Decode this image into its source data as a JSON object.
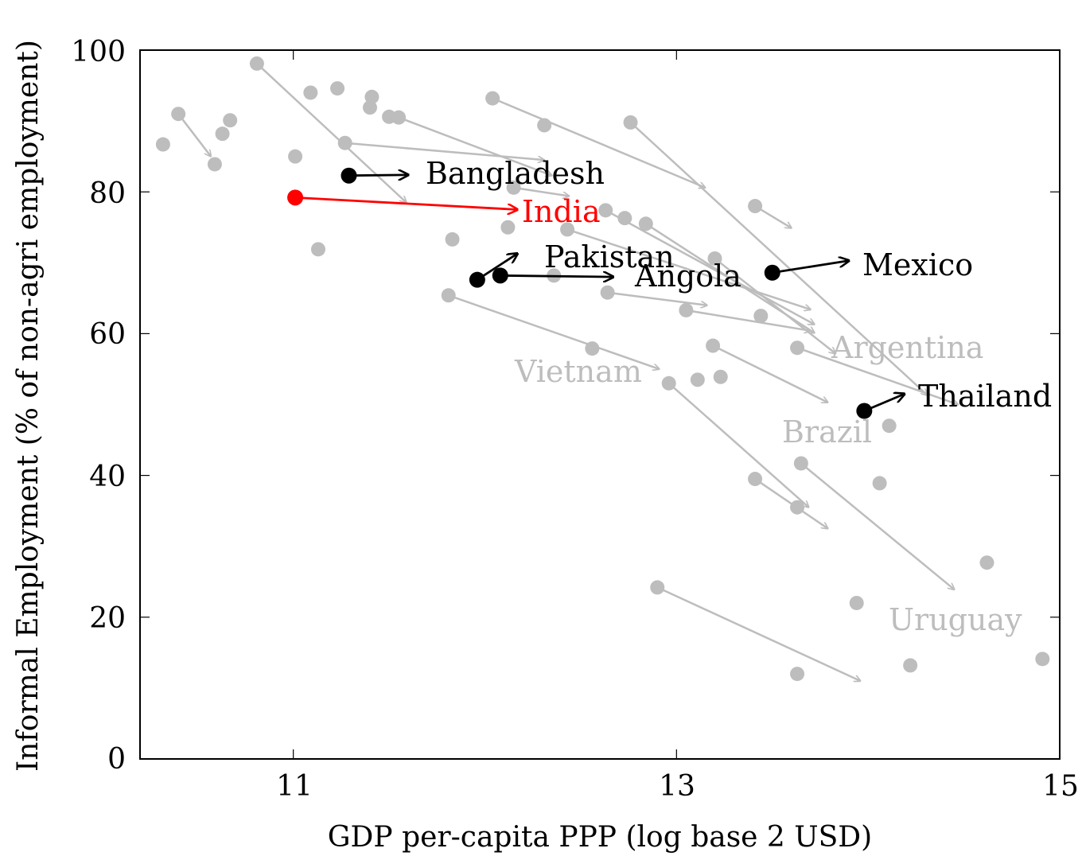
{
  "chart_data": {
    "type": "scatter",
    "title": "",
    "xlabel": "GDP per-capita PPP (log base 2 USD)",
    "ylabel": "Informal Employment (% of non-agri employment)",
    "xlim": [
      10.2,
      15
    ],
    "ylim": [
      0,
      100
    ],
    "xticks": [
      11,
      13,
      15
    ],
    "yticks": [
      0,
      20,
      40,
      60,
      80,
      100
    ],
    "grid": false,
    "colors": {
      "background_points": "#bdbdbd",
      "highlight": "#000000",
      "india": "#ff0000"
    },
    "background_points": [
      {
        "x": 10.32,
        "y": 86.7
      },
      {
        "x": 10.4,
        "y": 91.0
      },
      {
        "x": 10.59,
        "y": 83.9
      },
      {
        "x": 10.63,
        "y": 88.2
      },
      {
        "x": 10.67,
        "y": 90.1
      },
      {
        "x": 10.81,
        "y": 98.1
      },
      {
        "x": 11.01,
        "y": 85.0
      },
      {
        "x": 11.09,
        "y": 94.0
      },
      {
        "x": 11.13,
        "y": 71.9
      },
      {
        "x": 11.23,
        "y": 94.6
      },
      {
        "x": 11.27,
        "y": 86.9
      },
      {
        "x": 11.4,
        "y": 91.9
      },
      {
        "x": 11.41,
        "y": 93.4
      },
      {
        "x": 11.5,
        "y": 90.6
      },
      {
        "x": 11.55,
        "y": 90.5
      },
      {
        "x": 11.83,
        "y": 73.3
      },
      {
        "x": 11.81,
        "y": 65.4
      },
      {
        "x": 12.04,
        "y": 93.2
      },
      {
        "x": 12.12,
        "y": 75.0
      },
      {
        "x": 12.15,
        "y": 80.6
      },
      {
        "x": 12.31,
        "y": 89.4
      },
      {
        "x": 12.36,
        "y": 68.2
      },
      {
        "x": 12.43,
        "y": 74.7
      },
      {
        "x": 12.56,
        "y": 57.9
      },
      {
        "x": 12.63,
        "y": 77.4
      },
      {
        "x": 12.64,
        "y": 65.8
      },
      {
        "x": 12.73,
        "y": 76.3
      },
      {
        "x": 12.76,
        "y": 89.8
      },
      {
        "x": 12.84,
        "y": 75.5
      },
      {
        "x": 12.9,
        "y": 24.2
      },
      {
        "x": 12.96,
        "y": 53.0
      },
      {
        "x": 13.05,
        "y": 63.3
      },
      {
        "x": 13.11,
        "y": 53.5
      },
      {
        "x": 13.19,
        "y": 58.3
      },
      {
        "x": 13.2,
        "y": 70.6
      },
      {
        "x": 13.23,
        "y": 53.9
      },
      {
        "x": 13.41,
        "y": 78.0
      },
      {
        "x": 13.41,
        "y": 39.5
      },
      {
        "x": 13.44,
        "y": 62.5
      },
      {
        "x": 13.63,
        "y": 58.0
      },
      {
        "x": 13.63,
        "y": 35.5
      },
      {
        "x": 13.63,
        "y": 12.0
      },
      {
        "x": 13.65,
        "y": 41.7
      },
      {
        "x": 13.94,
        "y": 22.0
      },
      {
        "x": 14.06,
        "y": 38.9
      },
      {
        "x": 14.11,
        "y": 47.0
      },
      {
        "x": 14.22,
        "y": 13.2
      },
      {
        "x": 14.62,
        "y": 27.7
      },
      {
        "x": 14.91,
        "y": 14.1
      }
    ],
    "background_arrows": [
      {
        "from": [
          10.4,
          91.0
        ],
        "to": [
          10.57,
          85.0
        ]
      },
      {
        "from": [
          10.81,
          98.1
        ],
        "to": [
          11.59,
          78.5
        ]
      },
      {
        "from": [
          11.27,
          86.9
        ],
        "to": [
          12.31,
          84.5
        ]
      },
      {
        "from": [
          12.04,
          93.2
        ],
        "to": [
          13.15,
          80.6
        ]
      },
      {
        "from": [
          11.55,
          90.5
        ],
        "to": [
          12.35,
          82.3
        ]
      },
      {
        "from": [
          12.15,
          80.6
        ],
        "to": [
          12.44,
          79.4
        ]
      },
      {
        "from": [
          12.76,
          89.8
        ],
        "to": [
          14.31,
          51.3
        ]
      },
      {
        "from": [
          13.41,
          78.0
        ],
        "to": [
          13.6,
          74.9
        ]
      },
      {
        "from": [
          12.43,
          74.7
        ],
        "to": [
          13.7,
          63.4
        ]
      },
      {
        "from": [
          12.63,
          77.4
        ],
        "to": [
          13.72,
          61.3
        ]
      },
      {
        "from": [
          12.84,
          75.5
        ],
        "to": [
          13.72,
          60.1
        ]
      },
      {
        "from": [
          13.2,
          70.6
        ],
        "to": [
          13.83,
          57.2
        ]
      },
      {
        "from": [
          12.64,
          65.8
        ],
        "to": [
          13.16,
          64.0
        ]
      },
      {
        "from": [
          13.05,
          63.3
        ],
        "to": [
          13.7,
          60.4
        ]
      },
      {
        "from": [
          13.63,
          58.0
        ],
        "to": [
          14.47,
          50.0
        ]
      },
      {
        "from": [
          11.81,
          65.4
        ],
        "to": [
          12.91,
          55.0
        ]
      },
      {
        "from": [
          13.19,
          58.3
        ],
        "to": [
          13.79,
          50.3
        ]
      },
      {
        "from": [
          12.96,
          53.0
        ],
        "to": [
          13.69,
          35.5
        ]
      },
      {
        "from": [
          13.41,
          39.5
        ],
        "to": [
          13.79,
          32.5
        ]
      },
      {
        "from": [
          13.65,
          41.7
        ],
        "to": [
          14.45,
          23.9
        ]
      },
      {
        "from": [
          12.9,
          24.2
        ],
        "to": [
          13.96,
          11.0
        ]
      }
    ],
    "highlighted": [
      {
        "name": "Bangladesh",
        "from": [
          11.29,
          82.3
        ],
        "to": [
          11.6,
          82.4
        ]
      },
      {
        "name": "India",
        "from": [
          11.01,
          79.2
        ],
        "to": [
          12.17,
          77.5
        ]
      },
      {
        "name": "Pakistan",
        "from": [
          11.96,
          67.6
        ],
        "to": [
          12.17,
          71.3
        ]
      },
      {
        "name": "Angola",
        "from": [
          12.08,
          68.2
        ],
        "to": [
          12.67,
          68.0
        ]
      },
      {
        "name": "Mexico",
        "from": [
          13.5,
          68.6
        ],
        "to": [
          13.9,
          70.3
        ]
      },
      {
        "name": "Thailand",
        "from": [
          13.98,
          49.1
        ],
        "to": [
          14.19,
          51.5
        ]
      }
    ],
    "faded_labels": [
      {
        "text": "Vietnam",
        "x": 12.56,
        "y": 54.8
      },
      {
        "text": "Argentina",
        "x": 14.13,
        "y": 58.4
      },
      {
        "text": "Brazil",
        "x": 13.8,
        "y": 46.0
      },
      {
        "text": "Uruguay",
        "x": 14.45,
        "y": 19.4
      }
    ]
  },
  "labels": {
    "bangladesh": "Bangladesh",
    "india": "India",
    "pakistan": "Pakistan",
    "angola": "Angola",
    "mexico": "Mexico",
    "thailand": "Thailand",
    "vietnam": "Vietnam",
    "argentina": "Argentina",
    "brazil": "Brazil",
    "uruguay": "Uruguay"
  }
}
